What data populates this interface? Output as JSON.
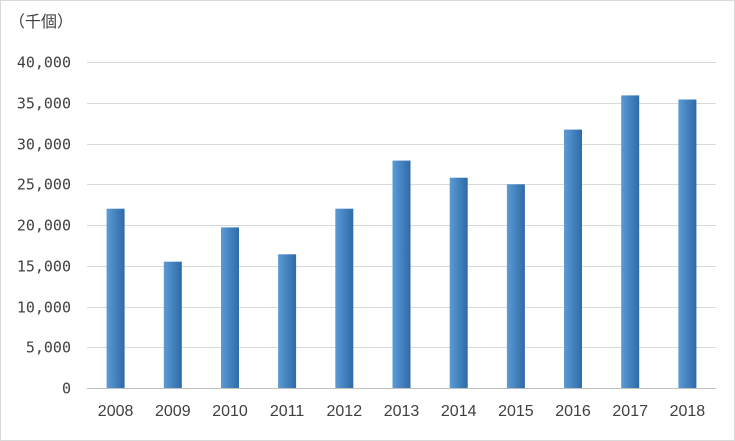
{
  "chart_data": {
    "type": "bar",
    "unit_label": "（千個）",
    "categories": [
      "2008",
      "2009",
      "2010",
      "2011",
      "2012",
      "2013",
      "2014",
      "2015",
      "2016",
      "2017",
      "2018"
    ],
    "values": [
      22000,
      15500,
      19700,
      16400,
      22000,
      27900,
      25800,
      25000,
      31700,
      35900,
      35400
    ],
    "ylim": [
      0,
      40000
    ],
    "yticks": [
      0,
      5000,
      10000,
      15000,
      20000,
      25000,
      30000,
      35000,
      40000
    ],
    "ytick_labels": [
      "0",
      "5,000",
      "10,000",
      "15,000",
      "20,000",
      "25,000",
      "30,000",
      "35,000",
      "40,000"
    ],
    "title": "",
    "xlabel": "",
    "ylabel": "",
    "grid": true,
    "legend": "none",
    "bar_color_light": "#5b9bd5",
    "bar_color_dark": "#2e6aa8"
  }
}
